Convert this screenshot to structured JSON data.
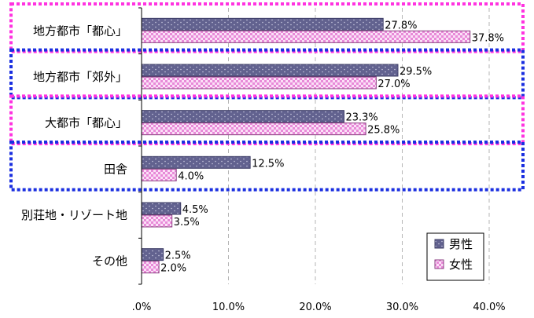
{
  "chart_data": {
    "type": "bar",
    "orientation": "horizontal",
    "categories": [
      "地方都市「都心」",
      "地方都市「郊外」",
      "大都市「都心」",
      "田舎",
      "別荘地・リゾート地",
      "その他"
    ],
    "series": [
      {
        "name": "男性",
        "values": [
          27.8,
          29.5,
          23.3,
          12.5,
          4.5,
          2.5
        ],
        "color": "#62628F",
        "labels": [
          "27.8%",
          "29.5%",
          "23.3%",
          "12.5%",
          "4.5%",
          "2.5%"
        ]
      },
      {
        "name": "女性",
        "values": [
          37.8,
          27.0,
          25.8,
          4.0,
          3.5,
          2.0
        ],
        "color": "#F6C6F0",
        "labels": [
          "37.8%",
          "27.0%",
          "25.8%",
          "4.0%",
          "3.5%",
          "2.0%"
        ]
      }
    ],
    "xlim": [
      0,
      40
    ],
    "x_ticks": [
      ".0%",
      "10.0%",
      "20.0%",
      "30.0%",
      "40.0%"
    ],
    "grid": "vertical dashed",
    "legend_position": "bottom-right",
    "highlight_boxes": [
      {
        "category": "地方都市「都心」",
        "color": "#FF33E0",
        "style": "dotted"
      },
      {
        "category": "地方都市「郊外」",
        "color": "#1A2FE0",
        "style": "dotted"
      },
      {
        "category": "大都市「都心」",
        "color": "#FF33E0",
        "style": "dotted"
      },
      {
        "category": "田舎",
        "color": "#1A2FE0",
        "style": "dotted"
      }
    ]
  }
}
